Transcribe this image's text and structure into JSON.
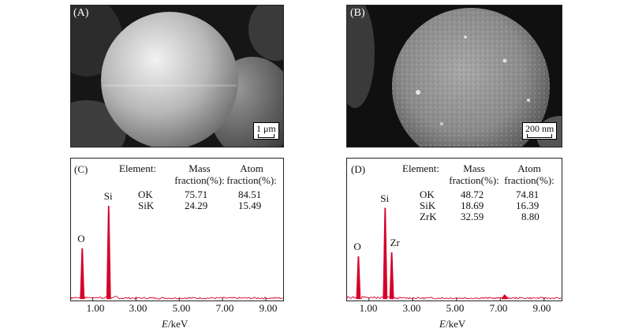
{
  "panels": {
    "a": {
      "label": "(A)",
      "scale": "1 μm"
    },
    "b": {
      "label": "(B)",
      "scale": "200 nm"
    },
    "c": {
      "label": "(C)",
      "headers": {
        "element": "Element:",
        "mass1": "Mass",
        "mass2": "fraction(%):",
        "atom1": "Atom",
        "atom2": "fraction(%):"
      },
      "rows": [
        {
          "el": "OK",
          "mass": "75.71",
          "atom": "84.51"
        },
        {
          "el": "SiK",
          "mass": "24.29",
          "atom": "15.49"
        }
      ],
      "peak_labels": [
        "O",
        "Si"
      ]
    },
    "d": {
      "label": "(D)",
      "headers": {
        "element": "Element:",
        "mass1": "Mass",
        "mass2": "fraction(%):",
        "atom1": "Atom",
        "atom2": "fraction(%):"
      },
      "rows": [
        {
          "el": "OK",
          "mass": "48.72",
          "atom": "74.81"
        },
        {
          "el": "SiK",
          "mass": "18.69",
          "atom": "16.39"
        },
        {
          "el": "ZrK",
          "mass": "32.59",
          "atom": "8.80"
        }
      ],
      "peak_labels": [
        "O",
        "Si",
        "Zr"
      ]
    }
  },
  "axis": {
    "xlabel_italic": "E",
    "xlabel_rest": "/keV",
    "ticks": [
      "1.00",
      "3.00",
      "5.00",
      "7.00",
      "9.00"
    ]
  },
  "chart_data": [
    {
      "type": "line",
      "panel": "C",
      "xlabel": "E/keV",
      "xlim": [
        0,
        9.8
      ],
      "xticks": [
        1.0,
        3.0,
        5.0,
        7.0,
        9.0
      ],
      "peaks": [
        {
          "label": "O",
          "x": 0.52,
          "rel_height": 0.5
        },
        {
          "label": "Si",
          "x": 1.74,
          "rel_height": 0.92
        }
      ],
      "color": "#d4002a"
    },
    {
      "type": "line",
      "panel": "D",
      "xlabel": "E/keV",
      "xlim": [
        0,
        9.8
      ],
      "xticks": [
        1.0,
        3.0,
        5.0,
        7.0,
        9.0
      ],
      "peaks": [
        {
          "label": "O",
          "x": 0.52,
          "rel_height": 0.42
        },
        {
          "label": "Si",
          "x": 1.74,
          "rel_height": 0.9
        },
        {
          "label": "Zr",
          "x": 2.04,
          "rel_height": 0.46
        },
        {
          "label": "",
          "x": 7.2,
          "rel_height": 0.04
        }
      ],
      "color": "#d4002a"
    }
  ]
}
